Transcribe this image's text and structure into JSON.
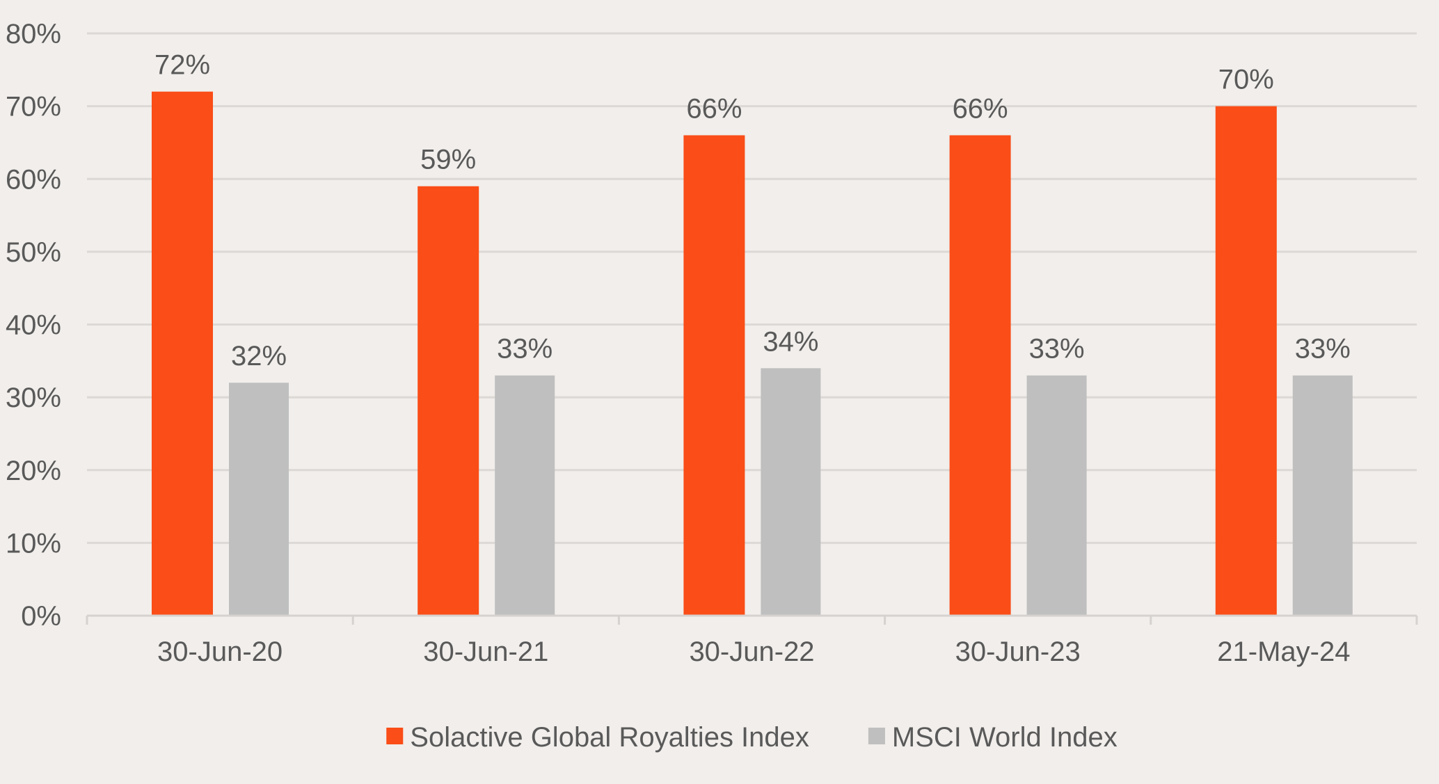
{
  "chart_data": {
    "type": "bar",
    "categories": [
      "30-Jun-20",
      "30-Jun-21",
      "30-Jun-22",
      "30-Jun-23",
      "21-May-24"
    ],
    "series": [
      {
        "name": "Solactive Global Royalties Index",
        "color": "#fa4d17",
        "values": [
          72,
          59,
          66,
          66,
          70
        ],
        "labels": [
          "72%",
          "59%",
          "66%",
          "66%",
          "70%"
        ]
      },
      {
        "name": "MSCI World Index",
        "color": "#bfbfbf",
        "values": [
          32,
          33,
          34,
          33,
          33
        ],
        "labels": [
          "32%",
          "33%",
          "34%",
          "33%",
          "33%"
        ]
      }
    ],
    "y_ticks": [
      "0%",
      "10%",
      "20%",
      "30%",
      "40%",
      "50%",
      "60%",
      "70%",
      "80%"
    ],
    "ylim": [
      0,
      80
    ],
    "grid": true,
    "legend": "bottom-center"
  }
}
